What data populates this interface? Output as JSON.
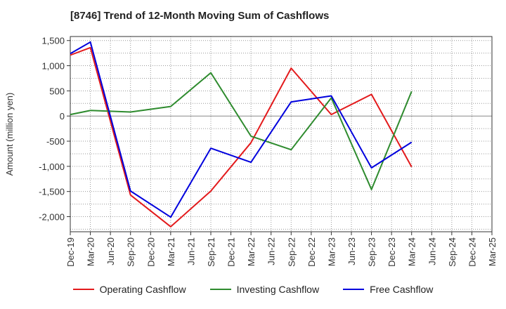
{
  "title": "[8746]  Trend of 12-Month Moving Sum of Cashflows",
  "chart_data": {
    "type": "line",
    "title": "[8746]  Trend of 12-Month Moving Sum of Cashflows",
    "ylabel": "Amount (million yen)",
    "xlabel": "",
    "categories": [
      "Dec-19",
      "Mar-20",
      "Jun-20",
      "Sep-20",
      "Dec-20",
      "Mar-21",
      "Jun-21",
      "Sep-21",
      "Dec-21",
      "Mar-22",
      "Jun-22",
      "Sep-22",
      "Dec-22",
      "Mar-23",
      "Jun-23",
      "Sep-23",
      "Dec-23",
      "Mar-24",
      "Jun-24",
      "Sep-24",
      "Dec-24",
      "Mar-25"
    ],
    "yticks": [
      1500,
      1000,
      500,
      0,
      -500,
      -1000,
      -1500,
      -2000
    ],
    "ytick_labels": [
      "1,500",
      "1,000",
      "500",
      "0",
      "-500",
      "-1,000",
      "-1,500",
      "-2,000"
    ],
    "ylim": [
      -2300,
      1580
    ],
    "grid": true,
    "legend_position": "bottom",
    "series": [
      {
        "name": "Operating Cashflow",
        "color": "#e31a1c",
        "values": [
          1210,
          1360,
          null,
          -1570,
          null,
          -2200,
          null,
          -1490,
          null,
          -530,
          null,
          950,
          null,
          30,
          null,
          430,
          null,
          -1010,
          null,
          null,
          null,
          null
        ]
      },
      {
        "name": "Investing Cashflow",
        "color": "#2e8b2e",
        "values": [
          30,
          110,
          null,
          80,
          null,
          190,
          null,
          860,
          null,
          -400,
          null,
          -670,
          null,
          360,
          null,
          -1460,
          null,
          490,
          null,
          null,
          null,
          null
        ]
      },
      {
        "name": "Free Cashflow",
        "color": "#0000dd",
        "values": [
          1240,
          1470,
          null,
          -1490,
          null,
          -2010,
          null,
          -640,
          null,
          -920,
          null,
          280,
          null,
          400,
          null,
          -1030,
          null,
          -520,
          null,
          null,
          null,
          null
        ]
      }
    ]
  }
}
